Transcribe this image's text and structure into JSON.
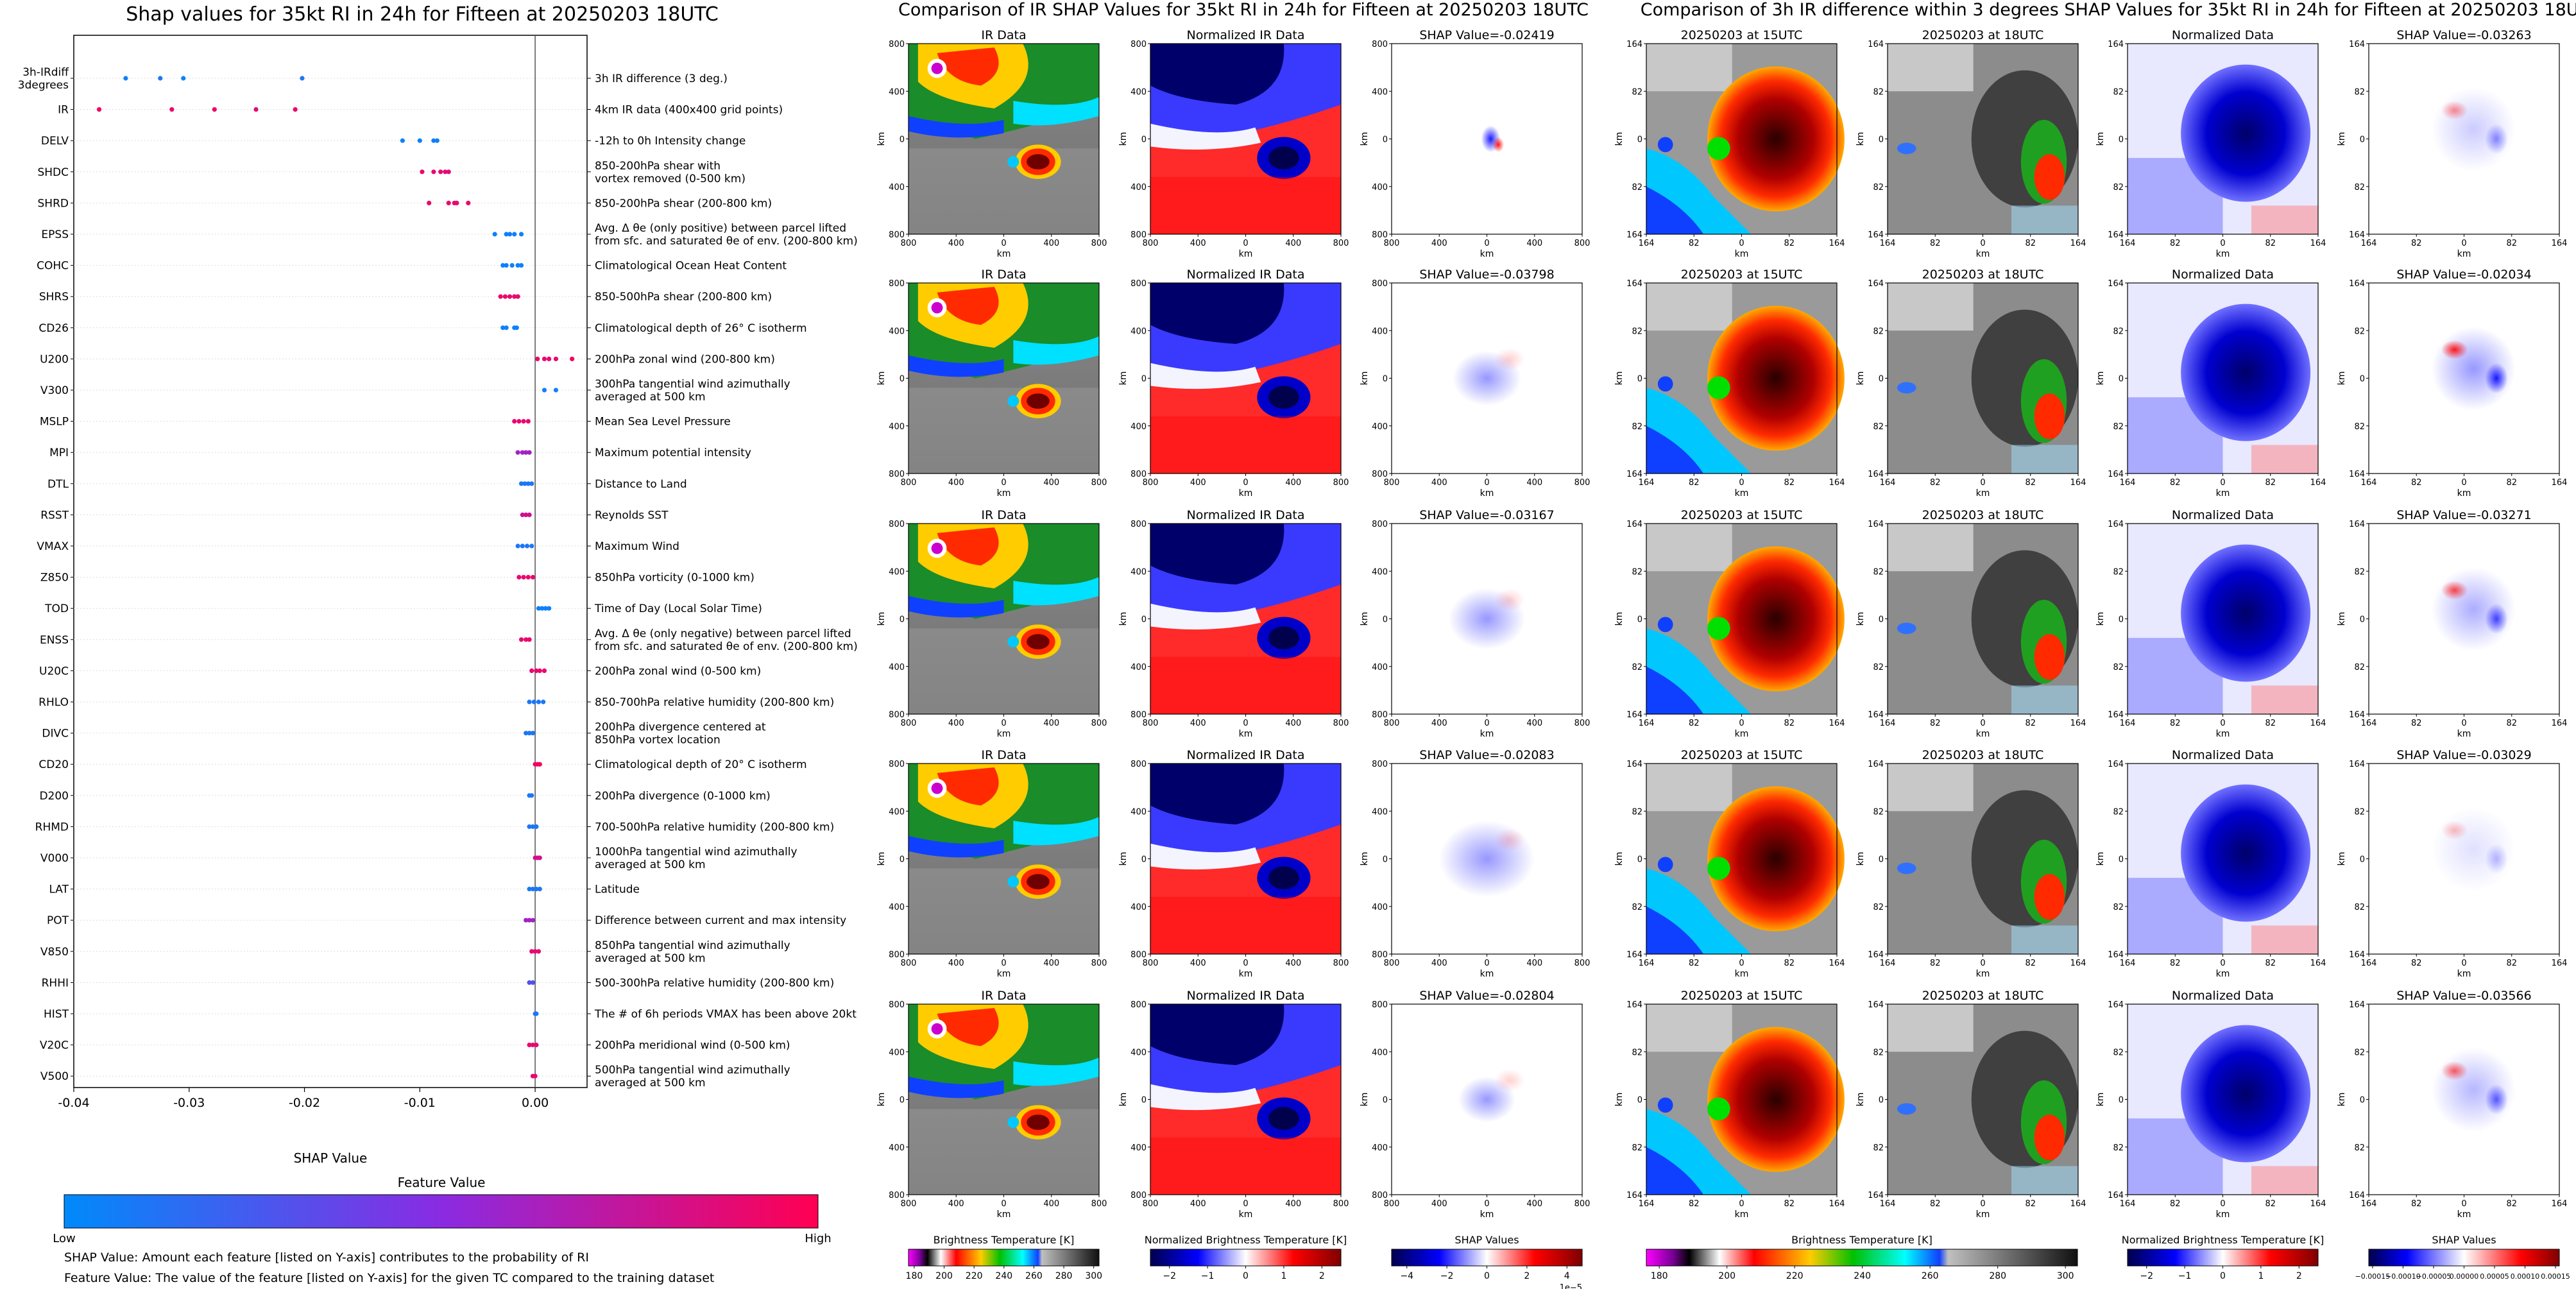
{
  "left_panel": {
    "title": "Shap values for 35kt RI in 24h for Fifteen at 20250203 18UTC",
    "xlabel": "SHAP Value",
    "colorbar_title": "Feature Value",
    "colorbar_low": "Low",
    "colorbar_high": "High",
    "note1": "SHAP Value: Amount each feature [listed on Y-axis] contributes to the probability of RI",
    "note2": "Feature Value: The value of the feature [listed on Y-axis] for the given TC compared to the training dataset",
    "colors": {
      "low": "#1e88e5",
      "mid": "#8a2be2",
      "high": "#ff0052"
    }
  },
  "chart_data": [
    {
      "type": "scatter",
      "title": "Shap values for 35kt RI in 24h for Fifteen at 20250203 18UTC",
      "xlabel": "SHAP Value",
      "ylabel": "",
      "xlim": [
        -0.04,
        0.0045
      ],
      "xticks": [
        "-0.04",
        "-0.03",
        "-0.02",
        "-0.01",
        "0.00"
      ],
      "grid": false,
      "features": [
        {
          "code": "3h-IRdiff\n3degrees",
          "desc": "3h IR difference (3 deg.)",
          "points": [
            [
              -0.0355,
              0.05
            ],
            [
              -0.0325,
              0.1
            ],
            [
              -0.0305,
              0.05
            ],
            [
              -0.0202,
              0.1
            ]
          ]
        },
        {
          "code": "IR",
          "desc": "4km IR data (400x400 grid points)",
          "points": [
            [
              -0.0378,
              0.95
            ],
            [
              -0.0315,
              0.9
            ],
            [
              -0.0278,
              0.92
            ],
            [
              -0.0242,
              0.9
            ],
            [
              -0.0208,
              0.9
            ]
          ]
        },
        {
          "code": "DELV",
          "desc": "-12h to 0h Intensity change",
          "points": [
            [
              -0.0115,
              0.05
            ],
            [
              -0.01,
              0.05
            ],
            [
              -0.0088,
              0.05
            ],
            [
              -0.0085,
              0.05
            ]
          ]
        },
        {
          "code": "SHDC",
          "desc": "850-200hPa shear with\nvortex removed (0-500 km)",
          "points": [
            [
              -0.0098,
              0.9
            ],
            [
              -0.0088,
              0.9
            ],
            [
              -0.0082,
              0.9
            ],
            [
              -0.0078,
              0.9
            ],
            [
              -0.0075,
              0.85
            ]
          ]
        },
        {
          "code": "SHRD",
          "desc": "850-200hPa shear (200-800 km)",
          "points": [
            [
              -0.0092,
              0.9
            ],
            [
              -0.0075,
              0.9
            ],
            [
              -0.007,
              0.9
            ],
            [
              -0.0068,
              0.9
            ],
            [
              -0.0058,
              0.9
            ]
          ]
        },
        {
          "code": "EPSS",
          "desc": "Avg. Δ θe (only positive) between parcel lifted\nfrom sfc. and saturated θe of env. (200-800 km)",
          "points": [
            [
              -0.0035,
              0.05
            ],
            [
              -0.0025,
              0.05
            ],
            [
              -0.0022,
              0.05
            ],
            [
              -0.0018,
              0.05
            ],
            [
              -0.0012,
              0.05
            ]
          ]
        },
        {
          "code": "COHC",
          "desc": "Climatological Ocean Heat Content",
          "points": [
            [
              -0.0028,
              0.05
            ],
            [
              -0.0025,
              0.05
            ],
            [
              -0.002,
              0.05
            ],
            [
              -0.0015,
              0.05
            ],
            [
              -0.0012,
              0.05
            ]
          ]
        },
        {
          "code": "SHRS",
          "desc": "850-500hPa shear (200-800 km)",
          "points": [
            [
              -0.003,
              0.9
            ],
            [
              -0.0026,
              0.9
            ],
            [
              -0.0022,
              0.9
            ],
            [
              -0.0018,
              0.9
            ],
            [
              -0.0015,
              0.9
            ]
          ]
        },
        {
          "code": "CD26",
          "desc": "Climatological depth of 26° C isotherm",
          "points": [
            [
              -0.0028,
              0.05
            ],
            [
              -0.0025,
              0.05
            ],
            [
              -0.0018,
              0.05
            ],
            [
              -0.0016,
              0.05
            ]
          ]
        },
        {
          "code": "U200",
          "desc": "200hPa zonal wind (200-800 km)",
          "points": [
            [
              0.0002,
              0.9
            ],
            [
              0.0008,
              0.9
            ],
            [
              0.0012,
              0.9
            ],
            [
              0.0018,
              0.9
            ],
            [
              0.0032,
              0.95
            ]
          ]
        },
        {
          "code": "V300",
          "desc": "300hPa tangential wind azimuthally\naveraged at 500 km",
          "points": [
            [
              0.0008,
              0.05
            ],
            [
              0.0018,
              0.05
            ]
          ]
        },
        {
          "code": "MSLP",
          "desc": "Mean Sea Level Pressure",
          "points": [
            [
              -0.0018,
              0.9
            ],
            [
              -0.0014,
              0.9
            ],
            [
              -0.001,
              0.9
            ],
            [
              -0.0006,
              0.9
            ]
          ]
        },
        {
          "code": "MPI",
          "desc": "Maximum potential intensity",
          "points": [
            [
              -0.0015,
              0.6
            ],
            [
              -0.0011,
              0.6
            ],
            [
              -0.0008,
              0.6
            ],
            [
              -0.0005,
              0.6
            ]
          ]
        },
        {
          "code": "DTL",
          "desc": "Distance to Land",
          "points": [
            [
              -0.0012,
              0.1
            ],
            [
              -0.0009,
              0.1
            ],
            [
              -0.0006,
              0.1
            ],
            [
              -0.0003,
              0.1
            ]
          ]
        },
        {
          "code": "RSST",
          "desc": "Reynolds SST",
          "points": [
            [
              -0.0011,
              0.8
            ],
            [
              -0.0008,
              0.8
            ],
            [
              -0.0005,
              0.8
            ]
          ]
        },
        {
          "code": "VMAX",
          "desc": "Maximum Wind",
          "points": [
            [
              -0.0015,
              0.1
            ],
            [
              -0.0011,
              0.1
            ],
            [
              -0.0007,
              0.1
            ],
            [
              -0.0003,
              0.1
            ]
          ]
        },
        {
          "code": "Z850",
          "desc": "850hPa vorticity (0-1000 km)",
          "points": [
            [
              -0.0014,
              0.9
            ],
            [
              -0.001,
              0.9
            ],
            [
              -0.0006,
              0.9
            ],
            [
              -0.0002,
              0.9
            ]
          ]
        },
        {
          "code": "TOD",
          "desc": "Time of Day (Local Solar Time)",
          "points": [
            [
              0.0003,
              0.05
            ],
            [
              0.0006,
              0.05
            ],
            [
              0.0009,
              0.05
            ],
            [
              0.0012,
              0.05
            ]
          ]
        },
        {
          "code": "ENSS",
          "desc": "Avg. Δ θe (only negative) between parcel lifted\nfrom sfc. and saturated θe of env. (200-800 km)",
          "points": [
            [
              -0.0012,
              0.9
            ],
            [
              -0.0008,
              0.9
            ],
            [
              -0.0005,
              0.9
            ]
          ]
        },
        {
          "code": "U20C",
          "desc": "200hPa zonal wind (0-500 km)",
          "points": [
            [
              -0.0003,
              0.9
            ],
            [
              0.0001,
              0.9
            ],
            [
              0.0004,
              0.9
            ],
            [
              0.0008,
              0.9
            ]
          ]
        },
        {
          "code": "RHLO",
          "desc": "850-700hPa relative humidity (200-800 km)",
          "points": [
            [
              -0.0005,
              0.1
            ],
            [
              -0.0001,
              0.1
            ],
            [
              0.0003,
              0.1
            ],
            [
              0.0007,
              0.1
            ]
          ]
        },
        {
          "code": "DIVC",
          "desc": "200hPa divergence centered at\n850hPa vortex location",
          "points": [
            [
              -0.0008,
              0.1
            ],
            [
              -0.0005,
              0.1
            ],
            [
              -0.0002,
              0.1
            ]
          ]
        },
        {
          "code": "CD20",
          "desc": "Climatological depth of 20° C isotherm",
          "points": [
            [
              0.0,
              0.95
            ],
            [
              0.0002,
              0.95
            ],
            [
              0.0004,
              0.95
            ]
          ]
        },
        {
          "code": "D200",
          "desc": "200hPa divergence (0-1000 km)",
          "points": [
            [
              -0.0005,
              0.1
            ],
            [
              -0.0003,
              0.1
            ]
          ]
        },
        {
          "code": "RHMD",
          "desc": "700-500hPa relative humidity (200-800 km)",
          "points": [
            [
              -0.0005,
              0.1
            ],
            [
              -0.0002,
              0.1
            ],
            [
              0.0001,
              0.1
            ]
          ]
        },
        {
          "code": "V000",
          "desc": "1000hPa tangential wind azimuthally\naveraged at 500 km",
          "points": [
            [
              0.0,
              0.8
            ],
            [
              0.0002,
              0.8
            ],
            [
              0.0004,
              0.8
            ]
          ]
        },
        {
          "code": "LAT",
          "desc": "Latitude",
          "points": [
            [
              -0.0005,
              0.1
            ],
            [
              -0.0002,
              0.1
            ],
            [
              0.0001,
              0.1
            ],
            [
              0.0004,
              0.1
            ]
          ]
        },
        {
          "code": "POT",
          "desc": "Difference between current and max intensity",
          "points": [
            [
              -0.0008,
              0.6
            ],
            [
              -0.0005,
              0.6
            ],
            [
              -0.0002,
              0.6
            ]
          ]
        },
        {
          "code": "V850",
          "desc": "850hPa tangential wind azimuthally\naveraged at 500 km",
          "points": [
            [
              -0.0003,
              0.9
            ],
            [
              0.0,
              0.9
            ],
            [
              0.0003,
              0.9
            ]
          ]
        },
        {
          "code": "RHHI",
          "desc": "500-300hPa relative humidity (200-800 km)",
          "points": [
            [
              -0.0005,
              0.3
            ],
            [
              -0.0002,
              0.3
            ]
          ]
        },
        {
          "code": "HIST",
          "desc": "The # of 6h periods VMAX has been above 20kt",
          "points": [
            [
              0.0,
              0.1
            ],
            [
              0.0001,
              0.1
            ]
          ]
        },
        {
          "code": "V20C",
          "desc": "200hPa meridional wind (0-500 km)",
          "points": [
            [
              -0.0005,
              0.9
            ],
            [
              -0.0002,
              0.9
            ],
            [
              0.0001,
              0.9
            ]
          ]
        },
        {
          "code": "V500",
          "desc": "500hPa tangential wind azimuthally\naveraged at 500 km",
          "points": [
            [
              -0.0002,
              0.9
            ],
            [
              0.0,
              0.9
            ]
          ]
        }
      ]
    },
    {
      "type": "heatmap",
      "title": "Comparison of IR SHAP Values for 35kt RI in 24h for Fifteen at 20250203 18UTC",
      "rows": 5,
      "panel_titles": [
        "IR Data",
        "Normalized IR Data"
      ],
      "shap_values": [
        "-0.02419",
        "-0.03798",
        "-0.03167",
        "-0.02083",
        "-0.02804"
      ],
      "shap_prefix": "SHAP Value=",
      "xlabel": "km",
      "ylabel": "km",
      "ticks": [
        "800",
        "400",
        "0",
        "400",
        "800"
      ],
      "colorbars": [
        {
          "label": "Brightness Temperature [K]",
          "ticks": [
            "180",
            "200",
            "220",
            "240",
            "260",
            "280",
            "300"
          ]
        },
        {
          "label": "Normalized Brightness Temperature [K]",
          "ticks": [
            "−2",
            "−1",
            "0",
            "1",
            "2"
          ]
        },
        {
          "label": "SHAP Values",
          "ticks": [
            "−4",
            "−2",
            "0",
            "2",
            "4"
          ],
          "exponent": "1e−5"
        }
      ]
    },
    {
      "type": "heatmap",
      "title": "Comparison of 3h IR difference within 3 degrees SHAP Values for 35kt RI in 24h for Fifteen at 20250203 18UTC",
      "rows": 5,
      "panel_titles": [
        "20250203 at 15UTC",
        "20250203 at 18UTC",
        "Normalized Data"
      ],
      "shap_values": [
        "-0.03263",
        "-0.02034",
        "-0.03271",
        "-0.03029",
        "-0.03566"
      ],
      "shap_prefix": "SHAP Value=",
      "xlabel": "km",
      "ylabel": "km",
      "ticks": [
        "164",
        "82",
        "0",
        "82",
        "164"
      ],
      "colorbars": [
        {
          "label": "Brightness Temperature [K]",
          "ticks": [
            "180",
            "200",
            "220",
            "240",
            "260",
            "280",
            "300"
          ]
        },
        {
          "label": "Normalized Brightness Temperature [K]",
          "ticks": [
            "−2",
            "−1",
            "0",
            "1",
            "2"
          ]
        },
        {
          "label": "SHAP Values",
          "ticks": [
            "−0.00015",
            "−0.00010",
            "−0.00005",
            "0.00000",
            "0.00005",
            "0.00010",
            "0.00015"
          ]
        }
      ]
    }
  ]
}
